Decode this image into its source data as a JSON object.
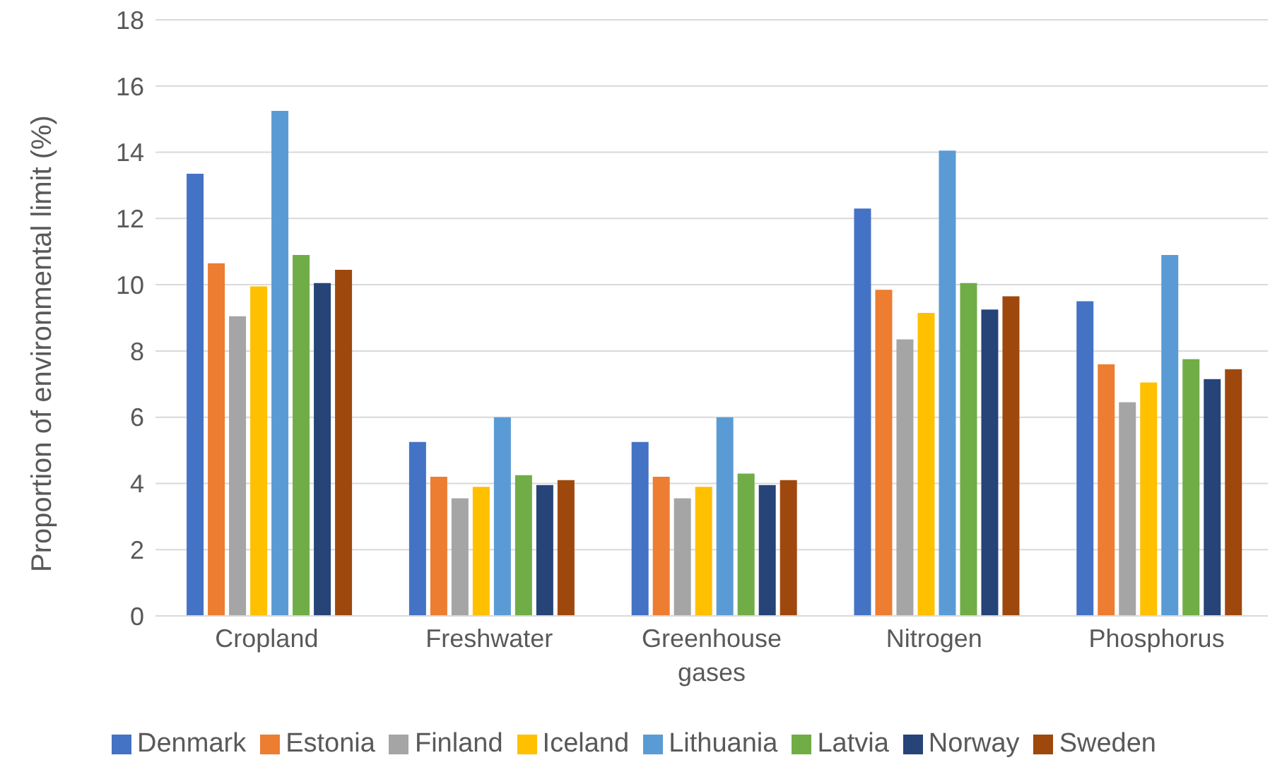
{
  "chart_data": {
    "type": "bar",
    "ylabel": "Proportion of environmental limit (%)",
    "categories": [
      "Cropland",
      "Freshwater",
      "Greenhouse gases",
      "Nitrogen",
      "Phosphorus"
    ],
    "series": [
      {
        "name": "Denmark",
        "color": "#4472c4",
        "values": [
          13.35,
          5.25,
          5.25,
          12.3,
          9.5
        ]
      },
      {
        "name": "Estonia",
        "color": "#ed7d31",
        "values": [
          10.65,
          4.2,
          4.2,
          9.85,
          7.6
        ]
      },
      {
        "name": "Finland",
        "color": "#a5a5a5",
        "values": [
          9.05,
          3.55,
          3.55,
          8.35,
          6.45
        ]
      },
      {
        "name": "Iceland",
        "color": "#ffc000",
        "values": [
          9.95,
          3.9,
          3.9,
          9.15,
          7.05
        ]
      },
      {
        "name": "Lithuania",
        "color": "#5b9bd5",
        "values": [
          15.25,
          6.0,
          6.0,
          14.05,
          10.9
        ]
      },
      {
        "name": "Latvia",
        "color": "#70ad47",
        "values": [
          10.9,
          4.25,
          4.3,
          10.05,
          7.75
        ]
      },
      {
        "name": "Norway",
        "color": "#264478",
        "values": [
          10.05,
          3.95,
          3.95,
          9.25,
          7.15
        ]
      },
      {
        "name": "Sweden",
        "color": "#9e480e",
        "values": [
          10.45,
          4.1,
          4.1,
          9.65,
          7.45
        ]
      }
    ],
    "ylim": [
      0,
      18
    ],
    "yticks": [
      0,
      2,
      4,
      6,
      8,
      10,
      12,
      14,
      16,
      18
    ],
    "grid": "y",
    "legend": "bottom"
  }
}
